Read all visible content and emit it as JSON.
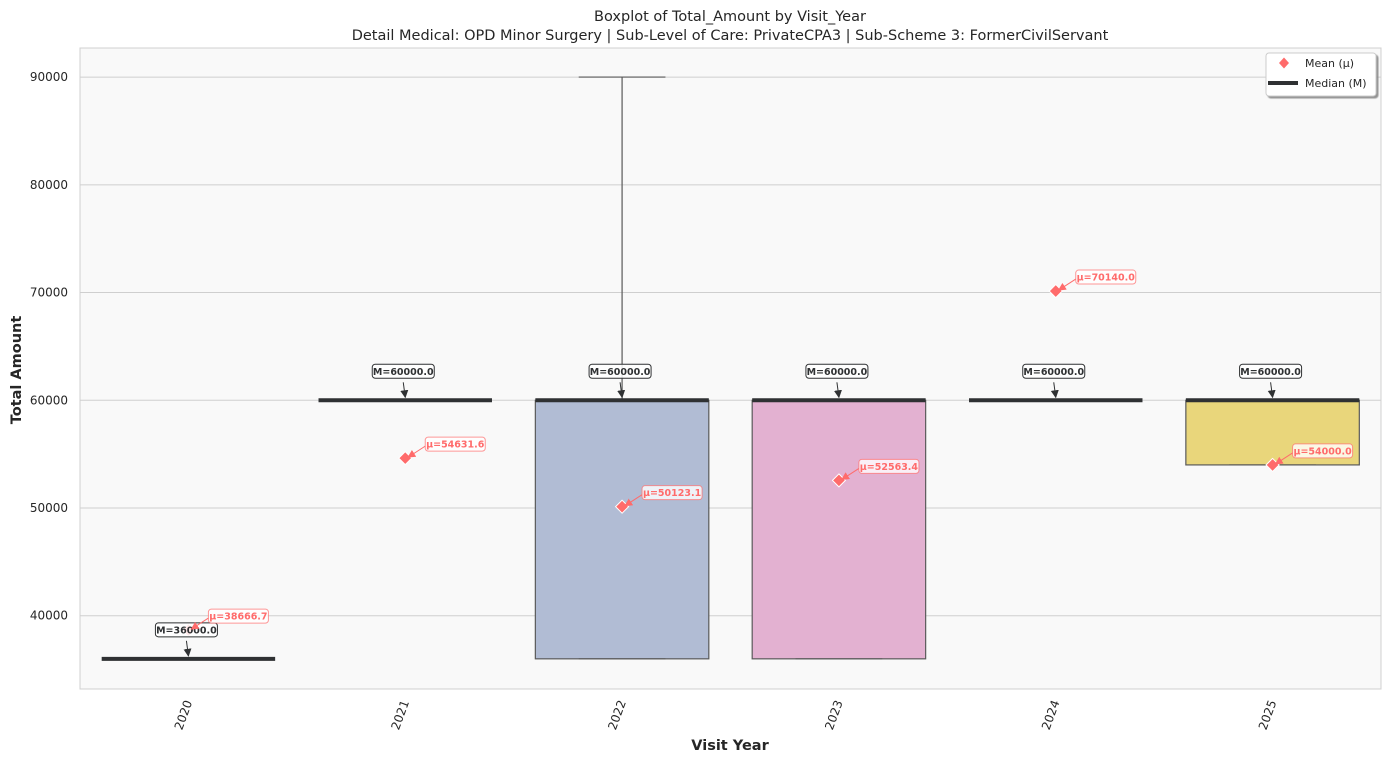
{
  "chart_data": {
    "type": "box",
    "title": "Boxplot of Total_Amount by Visit_Year",
    "subtitle": "Detail Medical: OPD Minor Surgery | Sub-Level of Care: PrivateCPA3 | Sub-Scheme 3: FormerCivilServant",
    "xlabel": "Visit Year",
    "ylabel": "Total Amount",
    "ylim": [
      33200,
      92700
    ],
    "yticks": [
      40000,
      50000,
      60000,
      70000,
      80000,
      90000
    ],
    "grid": "horizontal",
    "legend_position": "top-right",
    "legend": [
      {
        "label": "Mean (μ)",
        "marker": "diamond",
        "color": "#ff6b6b"
      },
      {
        "label": "Median (M)",
        "marker": "line",
        "color": "#2f3133"
      }
    ],
    "categories": [
      "2020",
      "2021",
      "2022",
      "2023",
      "2024",
      "2025"
    ],
    "boxes": [
      {
        "year": "2020",
        "whisker_low": 36000,
        "q1": 36000,
        "median": 36000,
        "q3": 36000,
        "whisker_high": 36000,
        "mean": 38666.7,
        "color": "#66c2a5",
        "median_label": "M=36000.0",
        "mean_label": "μ=38666.7"
      },
      {
        "year": "2021",
        "whisker_low": 60000,
        "q1": 60000,
        "median": 60000,
        "q3": 60000,
        "whisker_high": 60000,
        "mean": 54631.6,
        "color": "#fc8d62",
        "median_label": "M=60000.0",
        "mean_label": "μ=54631.6"
      },
      {
        "year": "2022",
        "whisker_low": 36000,
        "q1": 36000,
        "median": 60000,
        "q3": 60000,
        "whisker_high": 90000,
        "mean": 50123.1,
        "color": "#b1bcd4",
        "median_label": "M=60000.0",
        "mean_label": "μ=50123.1"
      },
      {
        "year": "2023",
        "whisker_low": 36000,
        "q1": 36000,
        "median": 60000,
        "q3": 60000,
        "whisker_high": 60000,
        "mean": 52563.4,
        "color": "#e3b1d1",
        "median_label": "M=60000.0",
        "mean_label": "μ=52563.4"
      },
      {
        "year": "2024",
        "whisker_low": 60000,
        "q1": 60000,
        "median": 60000,
        "q3": 60000,
        "whisker_high": 60000,
        "mean": 70140.0,
        "color": "#a6d854",
        "median_label": "M=60000.0",
        "mean_label": "μ=70140.0"
      },
      {
        "year": "2025",
        "whisker_low": 54000,
        "q1": 54000,
        "median": 60000,
        "q3": 60000,
        "whisker_high": 60000,
        "mean": 54000.0,
        "color": "#e9d67b",
        "median_label": "M=60000.0",
        "mean_label": "μ=54000.0"
      }
    ],
    "colors": {
      "plot_background": "#f9f9f9",
      "grid": "#cfcfcf",
      "median": "#2f3133",
      "mean": "#ff6b6b",
      "box_edge": "#5a5a5a"
    }
  }
}
